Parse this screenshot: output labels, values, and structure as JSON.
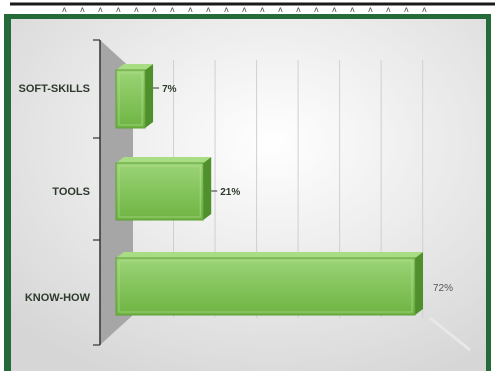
{
  "colors": {
    "frame_green": "#256b3a",
    "bar_face": "#86c95b",
    "bar_top": "#a8dd84",
    "bar_side": "#4f8f2c",
    "wall": "#a6a6a6",
    "plot_bg_light": "#ffffff",
    "plot_bg_dark": "#d9d9d9",
    "label_dark": "#2e3a2e"
  },
  "chart_data": {
    "type": "bar",
    "orientation": "horizontal",
    "style": "3d-clustered",
    "categories": [
      "SOFT-SKILLS",
      "TOOLS",
      "KNOW-HOW"
    ],
    "values": [
      7,
      21,
      72
    ],
    "value_labels": [
      "7%",
      "21%",
      "72%"
    ],
    "unit": "%",
    "xlim": [
      0,
      80
    ],
    "grid": "vertical",
    "legend": "none",
    "title": "",
    "xlabel": "",
    "ylabel": ""
  }
}
